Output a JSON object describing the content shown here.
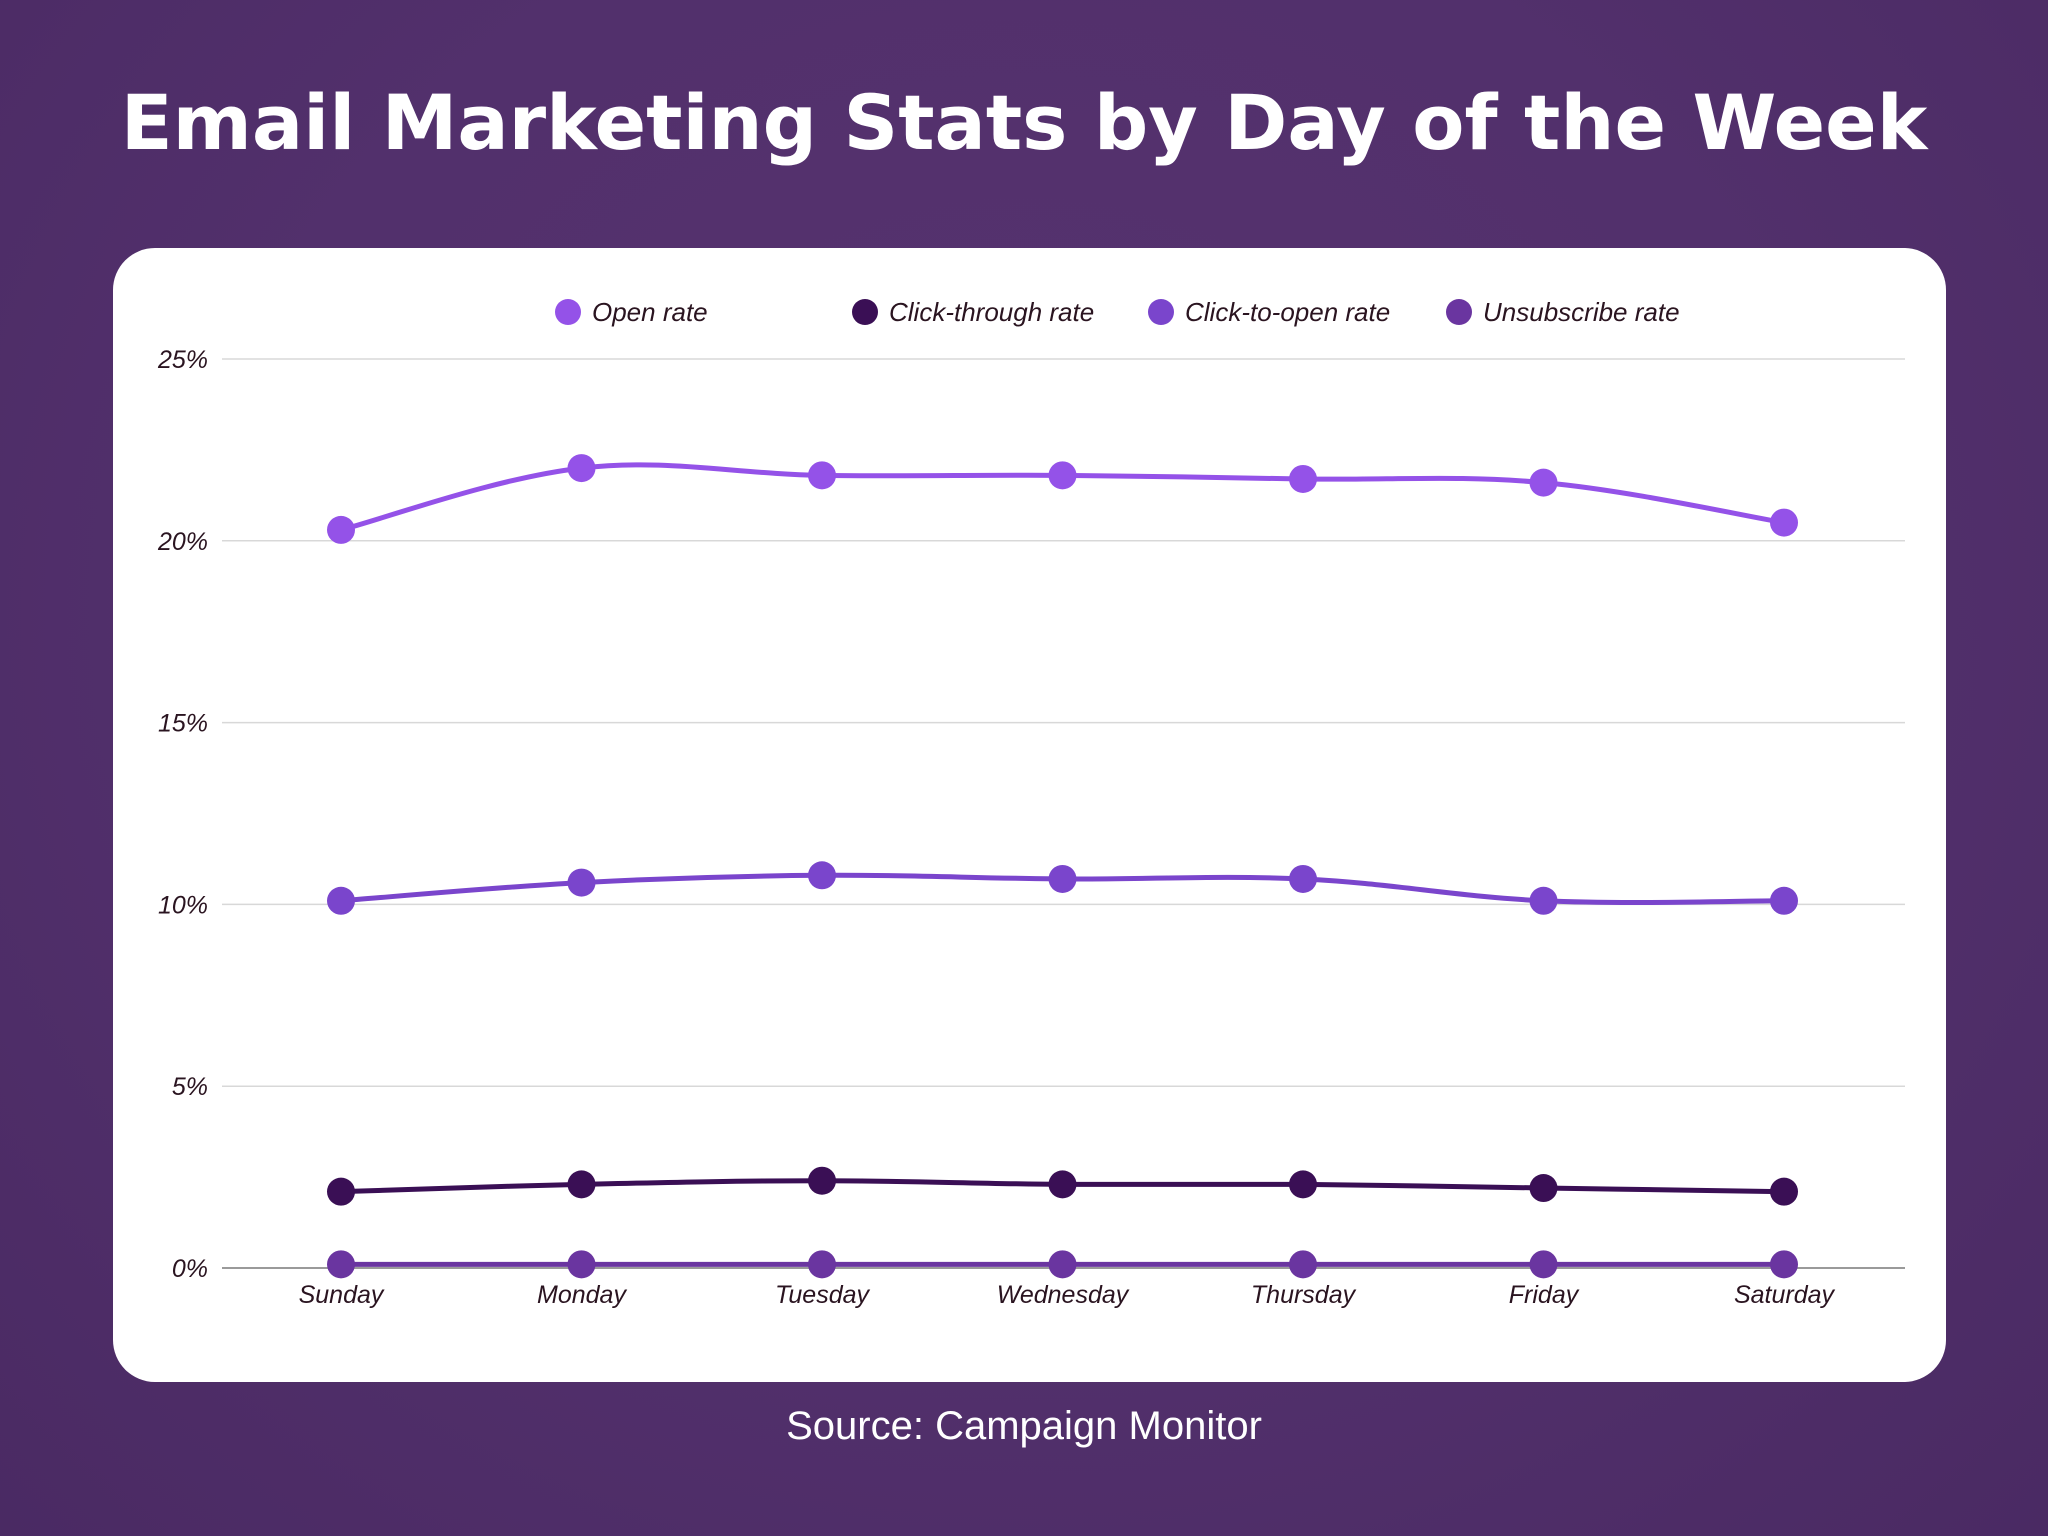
{
  "title": "Email Marketing Stats by Day of the Week",
  "source": "Source: Campaign Monitor",
  "chart_data": {
    "type": "line",
    "title": "Email Marketing Stats by Day of the Week",
    "categories": [
      "Sunday",
      "Monday",
      "Tuesday",
      "Wednesday",
      "Thursday",
      "Friday",
      "Saturday"
    ],
    "yticks": [
      "0%",
      "5%",
      "10%",
      "15%",
      "20%",
      "25%"
    ],
    "ylim": [
      0,
      25
    ],
    "yunit": "%",
    "grid": true,
    "legend_position": "top",
    "smooth": true,
    "series": [
      {
        "name": "Open rate",
        "color": "#9452e8",
        "values": [
          20.3,
          22.0,
          21.8,
          21.8,
          21.7,
          21.6,
          20.5
        ]
      },
      {
        "name": "Click-through rate",
        "color": "#3a0f55",
        "values": [
          2.1,
          2.3,
          2.4,
          2.3,
          2.3,
          2.2,
          2.1
        ]
      },
      {
        "name": "Click-to-open rate",
        "color": "#7a45cc",
        "values": [
          10.1,
          10.6,
          10.8,
          10.7,
          10.7,
          10.1,
          10.1
        ]
      },
      {
        "name": "Unsubscribe rate",
        "color": "#6a35a0",
        "values": [
          0.1,
          0.1,
          0.1,
          0.1,
          0.1,
          0.1,
          0.1
        ]
      }
    ]
  }
}
